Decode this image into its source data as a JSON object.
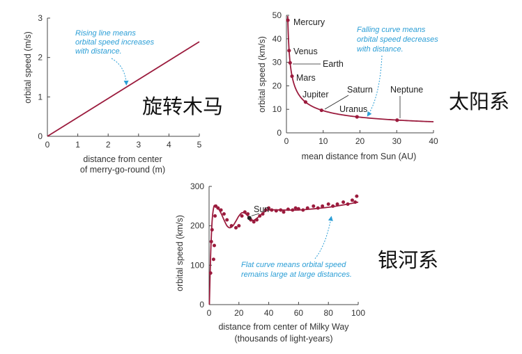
{
  "colors": {
    "curve": "#9b1b3d",
    "axis": "#444444",
    "annotation": "#2b9ed6",
    "text": "#222222"
  },
  "chart_data": [
    {
      "type": "line",
      "title": "旋转木马",
      "xlabel": [
        "distance from center",
        "of merry-go-round (m)"
      ],
      "ylabel": "orbital speed (m/s)",
      "xlim": [
        0,
        5
      ],
      "ylim": [
        0,
        3
      ],
      "xticks": [
        "0",
        "1",
        "2",
        "3",
        "4",
        "5"
      ],
      "yticks": [
        "0",
        "1",
        "2",
        "3"
      ],
      "line": {
        "x": [
          0,
          5
        ],
        "y": [
          0,
          2.4
        ]
      },
      "annotation": {
        "lines": [
          "Rising line means",
          "orbital speed increases",
          "with distance."
        ],
        "target": [
          2.6,
          1.25
        ]
      }
    },
    {
      "type": "scatter",
      "title": "太阳系",
      "xlabel": "mean distance from Sun (AU)",
      "ylabel": "orbital speed (km/s)",
      "xlim": [
        0,
        40
      ],
      "ylim": [
        0,
        50
      ],
      "xticks": [
        "0",
        "10",
        "20",
        "30",
        "40"
      ],
      "yticks": [
        "0",
        "10",
        "20",
        "30",
        "40",
        "50"
      ],
      "points": [
        {
          "name": "Mercury",
          "x": 0.39,
          "y": 47.9
        },
        {
          "name": "Venus",
          "x": 0.72,
          "y": 35.0
        },
        {
          "name": "Earth",
          "x": 1.0,
          "y": 29.8
        },
        {
          "name": "Mars",
          "x": 1.52,
          "y": 24.1
        },
        {
          "name": "Jupiter",
          "x": 5.2,
          "y": 13.1
        },
        {
          "name": "Saturn",
          "x": 9.54,
          "y": 9.6
        },
        {
          "name": "Uranus",
          "x": 19.2,
          "y": 6.8
        },
        {
          "name": "Neptune",
          "x": 30.1,
          "y": 5.4
        }
      ],
      "curve": {
        "k": 29.8,
        "from": 0.36,
        "to": 40
      },
      "annotation": {
        "lines": [
          "Falling curve means",
          "orbital speed decreases",
          "with distance."
        ],
        "target": [
          22,
          6.2
        ]
      }
    },
    {
      "type": "scatter",
      "title": "银河系",
      "xlabel": [
        "distance from center of Milky Way",
        "(thousands of light-years)"
      ],
      "ylabel": "orbital speed (km/s)",
      "xlim": [
        0,
        100
      ],
      "ylim": [
        0,
        300
      ],
      "xticks": [
        "0",
        "20",
        "40",
        "60",
        "80",
        "100"
      ],
      "yticks": [
        "0",
        "100",
        "200",
        "300"
      ],
      "sun": {
        "label": "Sun",
        "x": 27,
        "y": 220
      },
      "points": [
        [
          1,
          80
        ],
        [
          1.5,
          160
        ],
        [
          2,
          190
        ],
        [
          3,
          115
        ],
        [
          3.5,
          150
        ],
        [
          4,
          225
        ],
        [
          4.5,
          250
        ],
        [
          6,
          245
        ],
        [
          8,
          240
        ],
        [
          10,
          230
        ],
        [
          12,
          215
        ],
        [
          15,
          200
        ],
        [
          18,
          195
        ],
        [
          20,
          200
        ],
        [
          22,
          225
        ],
        [
          24,
          235
        ],
        [
          26,
          230
        ],
        [
          28,
          215
        ],
        [
          30,
          210
        ],
        [
          32,
          215
        ],
        [
          34,
          225
        ],
        [
          36,
          230
        ],
        [
          38,
          240
        ],
        [
          40,
          245
        ],
        [
          42,
          240
        ],
        [
          45,
          238
        ],
        [
          48,
          240
        ],
        [
          50,
          235
        ],
        [
          53,
          242
        ],
        [
          56,
          240
        ],
        [
          58,
          245
        ],
        [
          60,
          243
        ],
        [
          63,
          240
        ],
        [
          66,
          245
        ],
        [
          70,
          250
        ],
        [
          73,
          245
        ],
        [
          76,
          250
        ],
        [
          80,
          255
        ],
        [
          83,
          250
        ],
        [
          86,
          255
        ],
        [
          90,
          260
        ],
        [
          93,
          255
        ],
        [
          96,
          265
        ],
        [
          98,
          260
        ],
        [
          99,
          275
        ]
      ],
      "curve": [
        [
          0.2,
          0
        ],
        [
          1,
          120
        ],
        [
          2,
          210
        ],
        [
          3,
          245
        ],
        [
          4,
          252
        ],
        [
          6,
          245
        ],
        [
          8,
          232
        ],
        [
          10,
          215
        ],
        [
          12,
          200
        ],
        [
          14,
          195
        ],
        [
          16,
          200
        ],
        [
          18,
          212
        ],
        [
          20,
          225
        ],
        [
          22,
          233
        ],
        [
          24,
          232
        ],
        [
          26,
          225
        ],
        [
          28,
          216
        ],
        [
          30,
          214
        ],
        [
          33,
          222
        ],
        [
          36,
          232
        ],
        [
          40,
          240
        ],
        [
          50,
          240
        ],
        [
          60,
          240
        ],
        [
          70,
          243
        ],
        [
          80,
          247
        ],
        [
          90,
          253
        ],
        [
          100,
          260
        ]
      ],
      "annotation": {
        "lines": [
          "Flat curve means orbital speed",
          "remains large at large distances."
        ],
        "target": [
          82,
          245
        ]
      }
    }
  ]
}
